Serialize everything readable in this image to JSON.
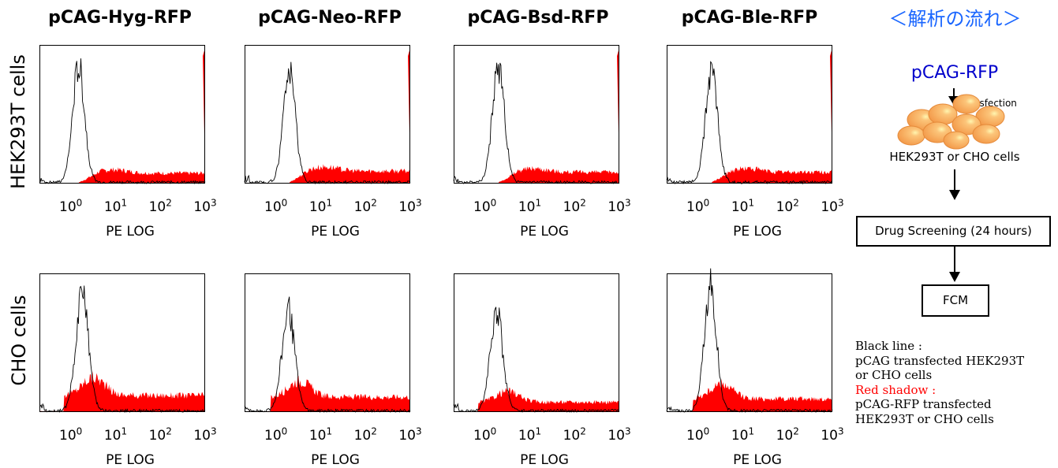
{
  "columns": [
    "pCAG-Hyg-RFP",
    "pCAG-Neo-RFP",
    "pCAG-Bsd-RFP",
    "pCAG-Ble-RFP"
  ],
  "rows": [
    "HEK293T cells",
    "CHO cells"
  ],
  "axis": {
    "ticks": [
      {
        "base": "10",
        "exp": "0"
      },
      {
        "base": "10",
        "exp": "1"
      },
      {
        "base": "10",
        "exp": "2"
      },
      {
        "base": "10",
        "exp": "3"
      }
    ],
    "xlabel": "PE LOG"
  },
  "colors": {
    "red_shadow": "#ff0000",
    "black_line": "#000000",
    "flow_title": "#1a66ff",
    "plasmid": "#0000cc",
    "cell": "#f7a86a"
  },
  "chart_data": [
    {
      "type": "area",
      "row": "HEK293T cells",
      "column": "pCAG-Hyg-RFP",
      "xlabel": "PE LOG",
      "xscale": "log",
      "xlim": [
        0.2,
        1000
      ],
      "series": [
        {
          "role": "line",
          "peak_x": 1.5,
          "peak_height": 0.83,
          "width": 0.19
        },
        {
          "role": "fill",
          "level": 0.1,
          "end_spike": true
        }
      ]
    },
    {
      "type": "area",
      "row": "HEK293T cells",
      "column": "pCAG-Neo-RFP",
      "xlabel": "PE LOG",
      "xscale": "log",
      "xlim": [
        0.2,
        1000
      ],
      "series": [
        {
          "role": "line",
          "peak_x": 2.0,
          "peak_height": 0.78,
          "width": 0.19
        },
        {
          "role": "fill",
          "level": 0.12,
          "end_spike": true
        }
      ]
    },
    {
      "type": "area",
      "row": "HEK293T cells",
      "column": "pCAG-Bsd-RFP",
      "xlabel": "PE LOG",
      "xscale": "log",
      "xlim": [
        0.2,
        1000
      ],
      "series": [
        {
          "role": "line",
          "peak_x": 2.0,
          "peak_height": 0.84,
          "width": 0.19
        },
        {
          "role": "fill",
          "level": 0.11,
          "end_spike": true
        }
      ]
    },
    {
      "type": "area",
      "row": "HEK293T cells",
      "column": "pCAG-Ble-RFP",
      "xlabel": "PE LOG",
      "xscale": "log",
      "xlim": [
        0.2,
        1000
      ],
      "series": [
        {
          "role": "line",
          "peak_x": 2.0,
          "peak_height": 0.8,
          "width": 0.19
        },
        {
          "role": "fill",
          "level": 0.11,
          "end_spike": true
        }
      ]
    },
    {
      "type": "area",
      "row": "CHO cells",
      "column": "pCAG-Hyg-RFP",
      "xlabel": "PE LOG",
      "xscale": "log",
      "xlim": [
        0.2,
        1000
      ],
      "series": [
        {
          "role": "line",
          "peak_x": 1.8,
          "peak_height": 0.85,
          "width": 0.2
        },
        {
          "role": "fill",
          "level": 0.2,
          "end_spike": false
        }
      ]
    },
    {
      "type": "area",
      "row": "CHO cells",
      "column": "pCAG-Neo-RFP",
      "xlabel": "PE LOG",
      "xscale": "log",
      "xlim": [
        0.2,
        1000
      ],
      "series": [
        {
          "role": "line",
          "peak_x": 1.9,
          "peak_height": 0.72,
          "width": 0.2
        },
        {
          "role": "fill",
          "level": 0.18,
          "end_spike": false
        }
      ]
    },
    {
      "type": "area",
      "row": "CHO cells",
      "column": "pCAG-Bsd-RFP",
      "xlabel": "PE LOG",
      "xscale": "log",
      "xlim": [
        0.2,
        1000
      ],
      "series": [
        {
          "role": "line",
          "peak_x": 1.8,
          "peak_height": 0.72,
          "width": 0.2
        },
        {
          "role": "fill",
          "level": 0.12,
          "end_spike": false
        }
      ]
    },
    {
      "type": "area",
      "row": "CHO cells",
      "column": "pCAG-Ble-RFP",
      "xlabel": "PE LOG",
      "xscale": "log",
      "xlim": [
        0.2,
        1000
      ],
      "series": [
        {
          "role": "line",
          "peak_x": 1.9,
          "peak_height": 0.9,
          "width": 0.19
        },
        {
          "role": "fill",
          "level": 0.16,
          "end_spike": false
        }
      ]
    }
  ],
  "flow": {
    "title": "＜解析の流れ＞",
    "plasmid": "pCAG-RFP",
    "transfection": "Transfection",
    "cells": "HEK293T or CHO cells",
    "step1": "Drug Screening  (24 hours)",
    "step2": "FCM"
  },
  "legend": {
    "black_title": "Black line :",
    "black_desc1": "pCAG transfected HEK293T",
    "black_desc2": "or CHO cells",
    "red_title": "Red shadow :",
    "red_desc1": "pCAG-RFP transfected",
    "red_desc2": "HEK293T or CHO cells"
  }
}
